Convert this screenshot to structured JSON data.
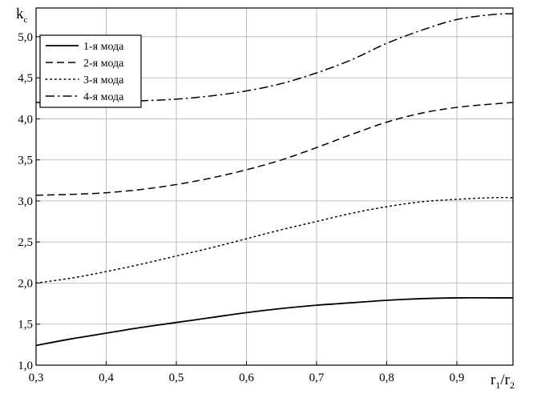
{
  "chart_data": {
    "type": "line",
    "xlabel": {
      "main": "r",
      "sub1": "1",
      "slash": "/r",
      "sub2": "2"
    },
    "ylabel": {
      "main": "k",
      "sub": "c"
    },
    "xlim": [
      0.3,
      0.98
    ],
    "ylim": [
      1.0,
      5.35
    ],
    "xticks": [
      0.3,
      0.4,
      0.5,
      0.6,
      0.7,
      0.8,
      0.9
    ],
    "xtick_labels": [
      "0,3",
      "0,4",
      "0,5",
      "0,6",
      "0,7",
      "0,8",
      "0,9"
    ],
    "yticks": [
      1.0,
      1.5,
      2.0,
      2.5,
      3.0,
      3.5,
      4.0,
      4.5,
      5.0
    ],
    "ytick_labels": [
      "1,0",
      "1,5",
      "2,0",
      "2,5",
      "3,0",
      "3,5",
      "4,0",
      "4,5",
      "5,0"
    ],
    "grid": true,
    "legend_position": "top-left",
    "series": [
      {
        "name": "1-я мода",
        "style": "solid",
        "x": [
          0.3,
          0.35,
          0.4,
          0.45,
          0.5,
          0.55,
          0.6,
          0.65,
          0.7,
          0.75,
          0.8,
          0.85,
          0.9,
          0.95,
          0.98
        ],
        "y": [
          1.24,
          1.32,
          1.39,
          1.46,
          1.52,
          1.58,
          1.64,
          1.69,
          1.73,
          1.76,
          1.79,
          1.81,
          1.82,
          1.82,
          1.82
        ]
      },
      {
        "name": "2-я мода",
        "style": "dashed",
        "x": [
          0.3,
          0.35,
          0.4,
          0.45,
          0.5,
          0.55,
          0.6,
          0.65,
          0.7,
          0.75,
          0.8,
          0.85,
          0.9,
          0.95,
          0.98
        ],
        "y": [
          3.07,
          3.08,
          3.1,
          3.14,
          3.2,
          3.28,
          3.38,
          3.5,
          3.65,
          3.81,
          3.96,
          4.07,
          4.14,
          4.18,
          4.2
        ]
      },
      {
        "name": "3-я мода",
        "style": "dotted",
        "x": [
          0.3,
          0.35,
          0.4,
          0.45,
          0.5,
          0.55,
          0.6,
          0.65,
          0.7,
          0.75,
          0.8,
          0.85,
          0.9,
          0.95,
          0.98
        ],
        "y": [
          2.0,
          2.06,
          2.14,
          2.23,
          2.33,
          2.43,
          2.54,
          2.65,
          2.75,
          2.85,
          2.93,
          2.99,
          3.02,
          3.04,
          3.04
        ]
      },
      {
        "name": "4-я мода",
        "style": "dashdot",
        "x": [
          0.3,
          0.35,
          0.4,
          0.45,
          0.5,
          0.55,
          0.6,
          0.65,
          0.7,
          0.75,
          0.8,
          0.85,
          0.9,
          0.95,
          0.98
        ],
        "y": [
          4.2,
          4.2,
          4.21,
          4.22,
          4.24,
          4.28,
          4.34,
          4.43,
          4.56,
          4.72,
          4.92,
          5.08,
          5.21,
          5.27,
          5.28
        ]
      }
    ]
  }
}
